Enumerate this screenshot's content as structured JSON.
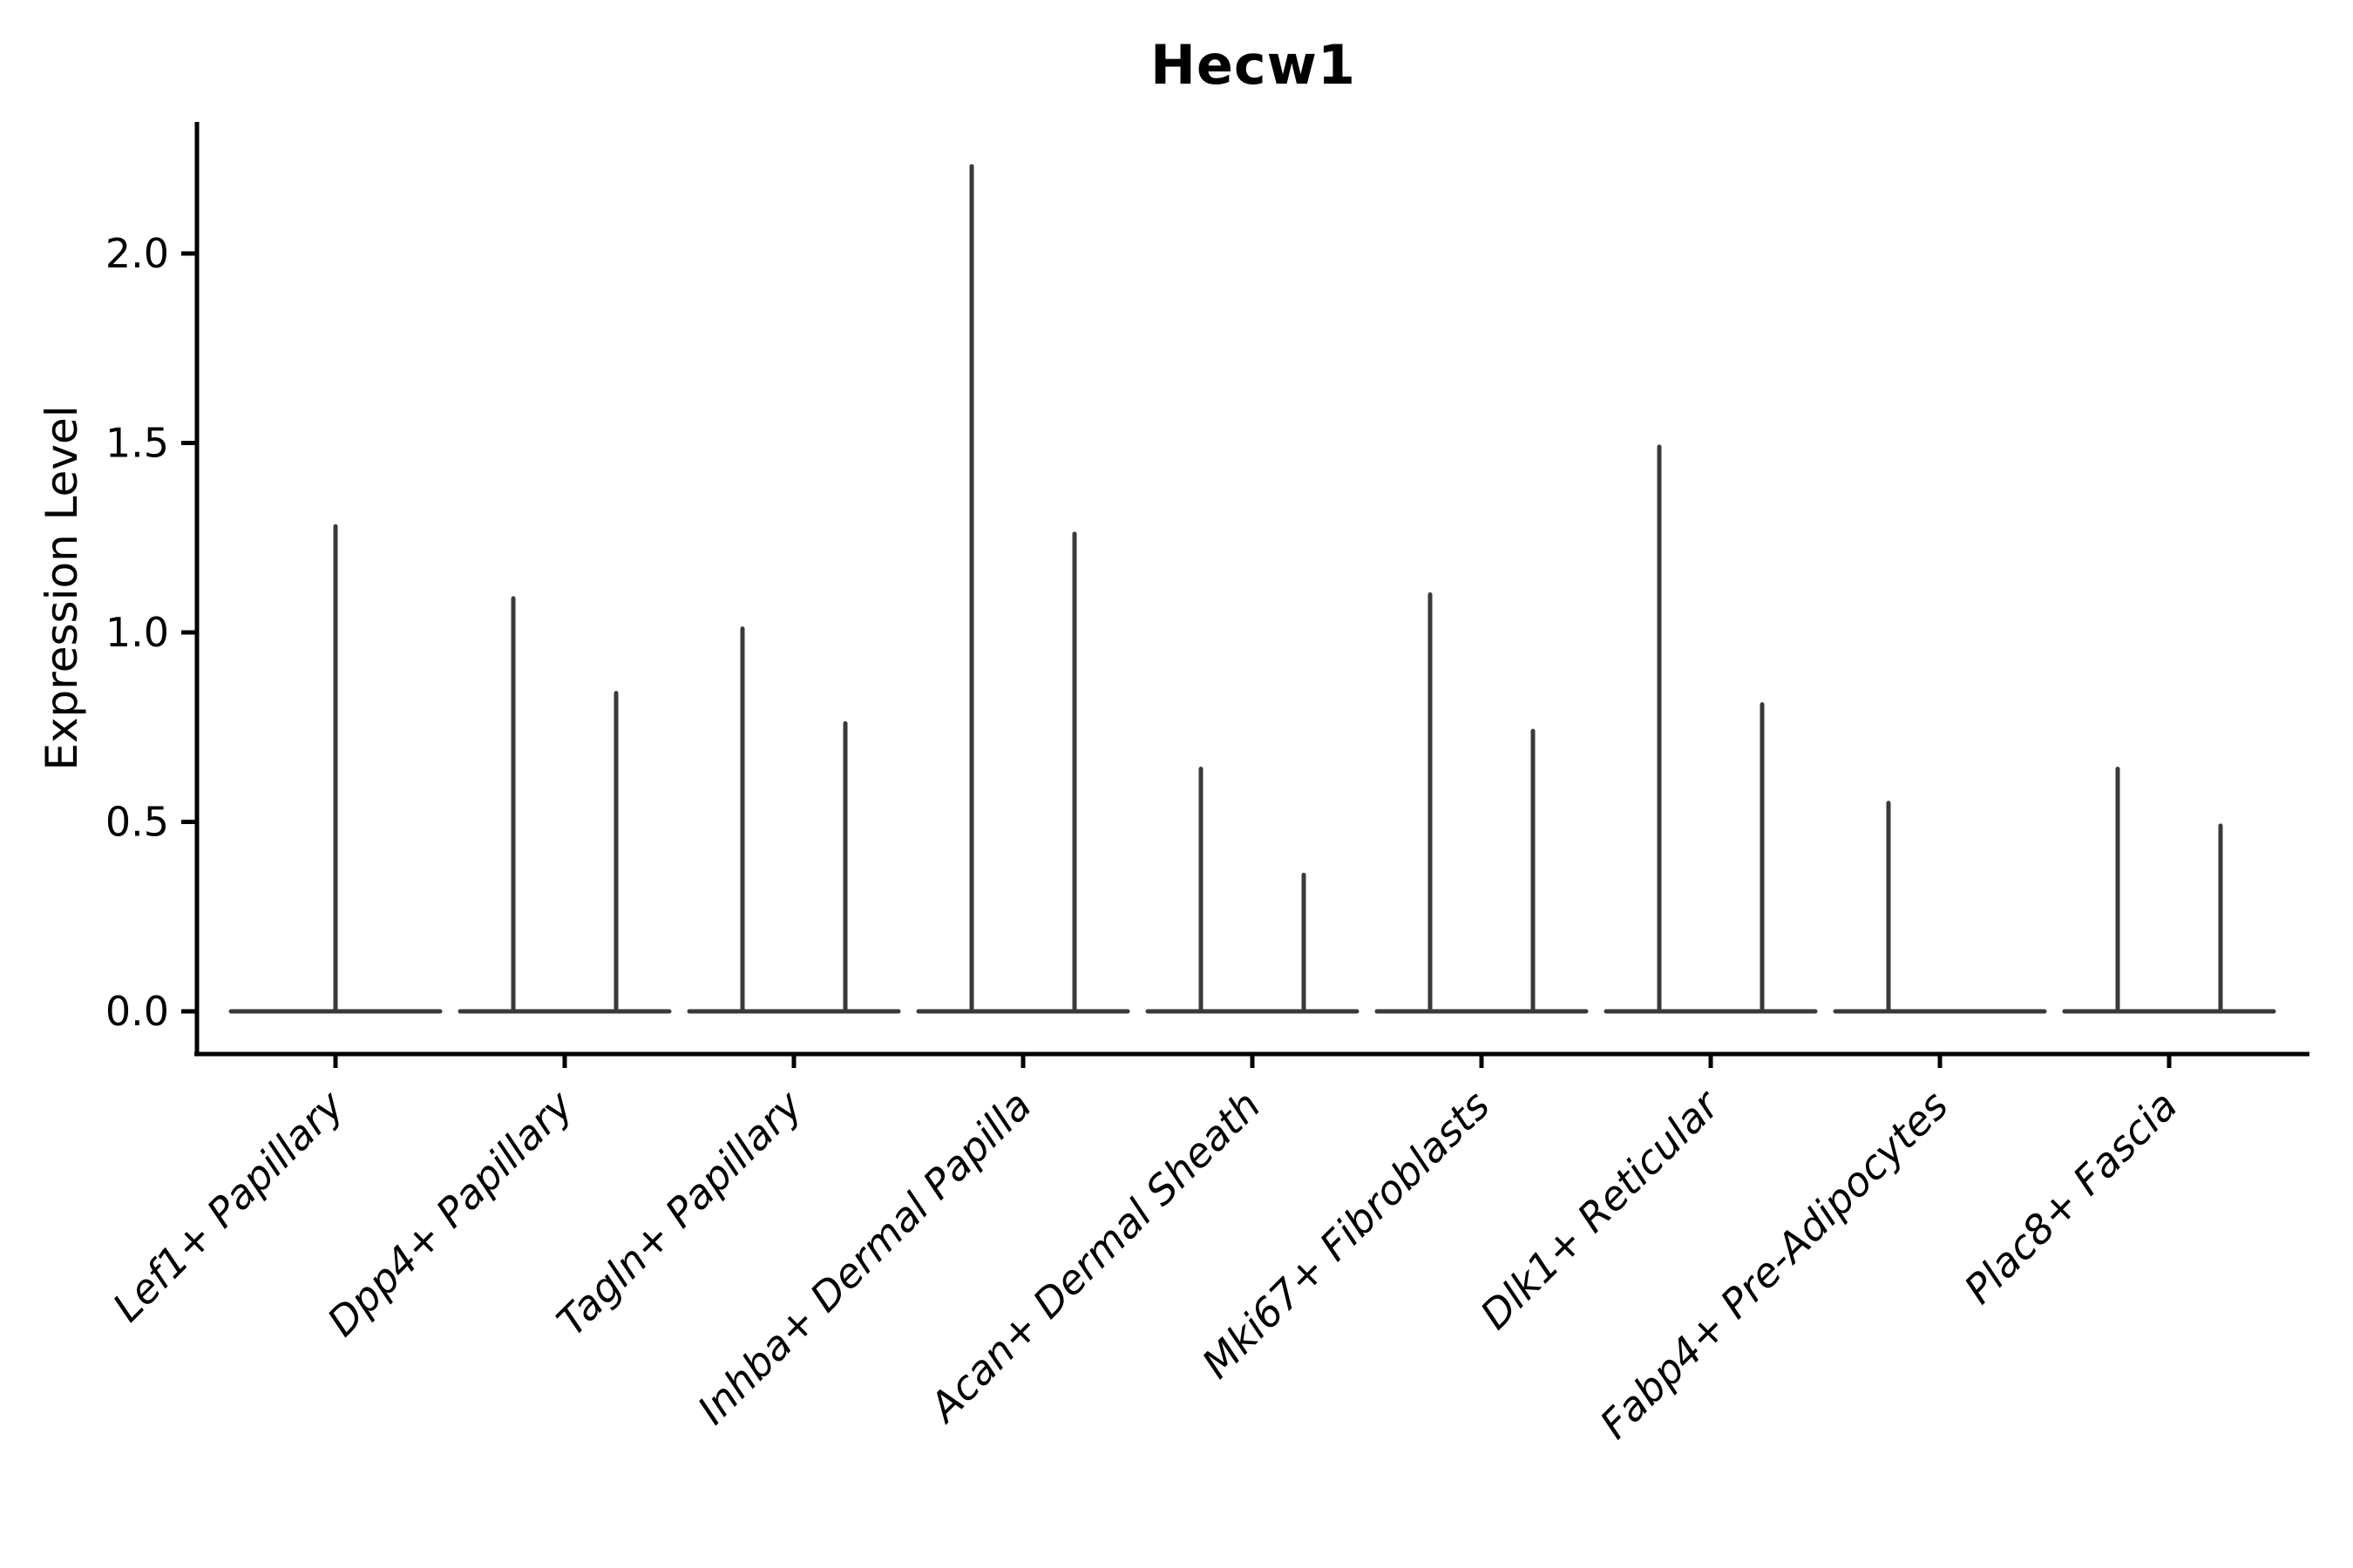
{
  "figure": {
    "background": "#ffffff"
  },
  "chart_data": {
    "type": "violin",
    "title": "Hecw1",
    "xlabel": "",
    "ylabel": "Expression Level",
    "categories": [
      "Lef1+ Papillary",
      "Dpp4+ Papillary",
      "Tagln+ Papillary",
      "Inhba+ Dermal Papilla",
      "Acan+ Dermal Sheath",
      "Mki67+ Fibroblasts",
      "Dlk1+ Reticular",
      "Fabp4+ Pre-Adipocytes",
      "Plac8+ Fascia"
    ],
    "ytick_labels": [
      "0.0",
      "0.5",
      "1.0",
      "1.5",
      "2.0"
    ],
    "yticks": [
      0.0,
      0.5,
      1.0,
      1.5,
      2.0
    ],
    "ylim": [
      -0.11,
      2.35
    ],
    "grid": false,
    "legend": null,
    "description": "Violin plot of Hecw1 expression; violins are collapsed to a flat base at 0 with thin spikes rising to the maximum expression. Most categories show two sub-violin spikes (left/right), Lef1+ Papillary shows one central spike, Fabp4+ Pre-Adipocytes shows only a left spike.",
    "violins": [
      {
        "category": "Lef1+ Papillary",
        "spikes": [
          {
            "position": "center",
            "max": 1.28
          }
        ]
      },
      {
        "category": "Dpp4+ Papillary",
        "spikes": [
          {
            "position": "left",
            "max": 1.09
          },
          {
            "position": "right",
            "max": 0.84
          }
        ]
      },
      {
        "category": "Tagln+ Papillary",
        "spikes": [
          {
            "position": "left",
            "max": 1.01
          },
          {
            "position": "right",
            "max": 0.76
          }
        ]
      },
      {
        "category": "Inhba+ Dermal Papilla",
        "spikes": [
          {
            "position": "left",
            "max": 2.23
          },
          {
            "position": "right",
            "max": 1.26
          }
        ]
      },
      {
        "category": "Acan+ Dermal Sheath",
        "spikes": [
          {
            "position": "left",
            "max": 0.64
          },
          {
            "position": "right",
            "max": 0.36
          }
        ]
      },
      {
        "category": "Mki67+ Fibroblasts",
        "spikes": [
          {
            "position": "left",
            "max": 1.1
          },
          {
            "position": "right",
            "max": 0.74
          }
        ]
      },
      {
        "category": "Dlk1+ Reticular",
        "spikes": [
          {
            "position": "left",
            "max": 1.49
          },
          {
            "position": "right",
            "max": 0.81
          }
        ]
      },
      {
        "category": "Fabp4+ Pre-Adipocytes",
        "spikes": [
          {
            "position": "left",
            "max": 0.55
          }
        ]
      },
      {
        "category": "Plac8+ Fascia",
        "spikes": [
          {
            "position": "left",
            "max": 0.64
          },
          {
            "position": "right",
            "max": 0.49
          }
        ]
      }
    ],
    "colors": {
      "violin_line": "#3a3a3a",
      "axis": "#000000",
      "text": "#000000",
      "background": "#ffffff"
    }
  }
}
